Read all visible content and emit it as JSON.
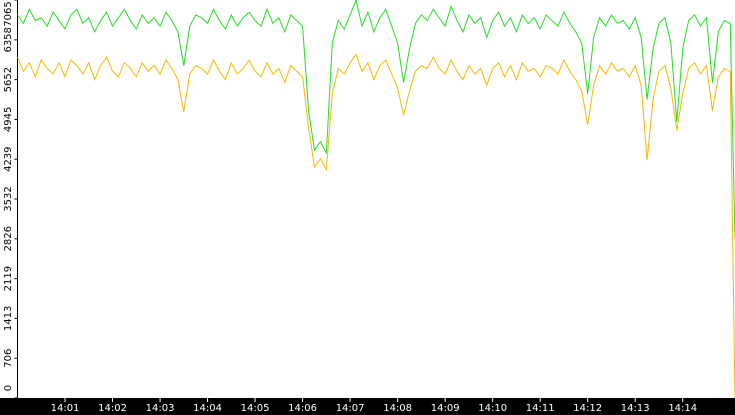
{
  "chart_data": {
    "type": "line",
    "x": [
      0,
      0.125,
      0.25,
      0.375,
      0.5,
      0.625,
      0.75,
      0.875,
      1,
      1.125,
      1.25,
      1.375,
      1.5,
      1.625,
      1.75,
      1.875,
      2,
      2.125,
      2.25,
      2.375,
      2.5,
      2.625,
      2.75,
      2.875,
      3,
      3.125,
      3.25,
      3.375,
      3.5,
      3.625,
      3.75,
      3.875,
      4,
      4.125,
      4.25,
      4.375,
      4.5,
      4.625,
      4.75,
      4.875,
      5,
      5.125,
      5.25,
      5.375,
      5.5,
      5.625,
      5.75,
      5.875,
      6,
      6.125,
      6.25,
      6.375,
      6.5,
      6.625,
      6.75,
      6.875,
      7,
      7.125,
      7.25,
      7.375,
      7.5,
      7.625,
      7.75,
      7.875,
      8,
      8.125,
      8.25,
      8.375,
      8.5,
      8.625,
      8.75,
      8.875,
      9,
      9.125,
      9.25,
      9.375,
      9.5,
      9.625,
      9.75,
      9.875,
      10,
      10.125,
      10.25,
      10.375,
      10.5,
      10.625,
      10.75,
      10.875,
      11,
      11.125,
      11.25,
      11.375,
      11.5,
      11.625,
      11.75,
      11.875,
      12,
      12.125,
      12.25,
      12.375,
      12.5,
      12.625,
      12.75,
      12.875,
      13,
      13.125,
      13.25,
      13.375,
      13.5,
      13.625,
      13.75,
      13.875,
      14,
      14.125,
      14.25,
      14.375,
      14.5,
      14.625,
      14.75,
      14.875,
      15,
      15.1
    ],
    "series": [
      {
        "color": "#f5b800",
        "values": [
          6050,
          5800,
          5950,
          5700,
          6000,
          5850,
          5750,
          5950,
          5700,
          6000,
          5900,
          5750,
          5950,
          5650,
          5900,
          6050,
          5800,
          5700,
          5950,
          5850,
          5700,
          5950,
          5800,
          5900,
          5750,
          6000,
          5850,
          5650,
          5080,
          5750,
          5900,
          5850,
          5750,
          6000,
          5800,
          5650,
          5950,
          5750,
          5850,
          6000,
          5800,
          5700,
          5950,
          5750,
          5850,
          5600,
          5900,
          5800,
          5700,
          4800,
          4100,
          4250,
          4050,
          5400,
          5850,
          5750,
          5950,
          6100,
          5800,
          5950,
          5650,
          5900,
          6000,
          5750,
          5500,
          5020,
          5450,
          5800,
          5900,
          5850,
          6050,
          5850,
          5750,
          6000,
          5800,
          5650,
          5900,
          5750,
          5850,
          5550,
          5850,
          5950,
          5700,
          5900,
          5650,
          5950,
          5800,
          5850,
          5700,
          5900,
          5850,
          5750,
          6000,
          5800,
          5650,
          5450,
          4850,
          5550,
          5900,
          5750,
          5950,
          5800,
          5850,
          5700,
          5900,
          5550,
          4220,
          5300,
          5800,
          5900,
          5500,
          4750,
          5400,
          5850,
          5950,
          5750,
          5900,
          5100,
          5700,
          5850,
          5800,
          0
        ]
      },
      {
        "color": "#22dd22",
        "values": [
          6800,
          6650,
          6900,
          6700,
          6750,
          6600,
          6850,
          6700,
          6550,
          6800,
          6900,
          6650,
          6750,
          6500,
          6700,
          6850,
          6600,
          6750,
          6900,
          6700,
          6550,
          6800,
          6650,
          6750,
          6600,
          6850,
          6700,
          6500,
          5900,
          6600,
          6800,
          6750,
          6650,
          6900,
          6700,
          6550,
          6800,
          6600,
          6750,
          6850,
          6700,
          6600,
          6900,
          6650,
          6750,
          6500,
          6800,
          6700,
          6600,
          5100,
          4400,
          4550,
          4350,
          6300,
          6700,
          6550,
          6800,
          7065,
          6600,
          6850,
          6500,
          6750,
          6900,
          6600,
          6300,
          5600,
          6200,
          6650,
          6800,
          6700,
          6900,
          6750,
          6600,
          6950,
          6700,
          6500,
          6800,
          6650,
          6750,
          6400,
          6700,
          6850,
          6600,
          6750,
          6500,
          6800,
          6650,
          6750,
          6550,
          6800,
          6700,
          6600,
          6850,
          6650,
          6500,
          6300,
          5400,
          6400,
          6750,
          6600,
          6800,
          6650,
          6700,
          6550,
          6750,
          6400,
          5300,
          6200,
          6650,
          6750,
          6300,
          4900,
          6200,
          6700,
          6800,
          6600,
          6750,
          5600,
          6500,
          6700,
          6650,
          2830
        ]
      }
    ],
    "xlim": [
      0,
      15.1
    ],
    "xticks": [
      {
        "value": 1,
        "label": "14:01"
      },
      {
        "value": 2,
        "label": "14:02"
      },
      {
        "value": 3,
        "label": "14:03"
      },
      {
        "value": 4,
        "label": "14:04"
      },
      {
        "value": 5,
        "label": "14:05"
      },
      {
        "value": 6,
        "label": "14:06"
      },
      {
        "value": 7,
        "label": "14:07"
      },
      {
        "value": 8,
        "label": "14:08"
      },
      {
        "value": 9,
        "label": "14:09"
      },
      {
        "value": 10,
        "label": "14:10"
      },
      {
        "value": 11,
        "label": "14:11"
      },
      {
        "value": 12,
        "label": "14:12"
      },
      {
        "value": 13,
        "label": "14:13"
      },
      {
        "value": 14,
        "label": "14:14"
      }
    ],
    "ylim": [
      0,
      7065
    ],
    "yticks": [
      0,
      706,
      1413,
      2119,
      2826,
      3532,
      4239,
      4945,
      5652,
      6358,
      7065
    ]
  }
}
